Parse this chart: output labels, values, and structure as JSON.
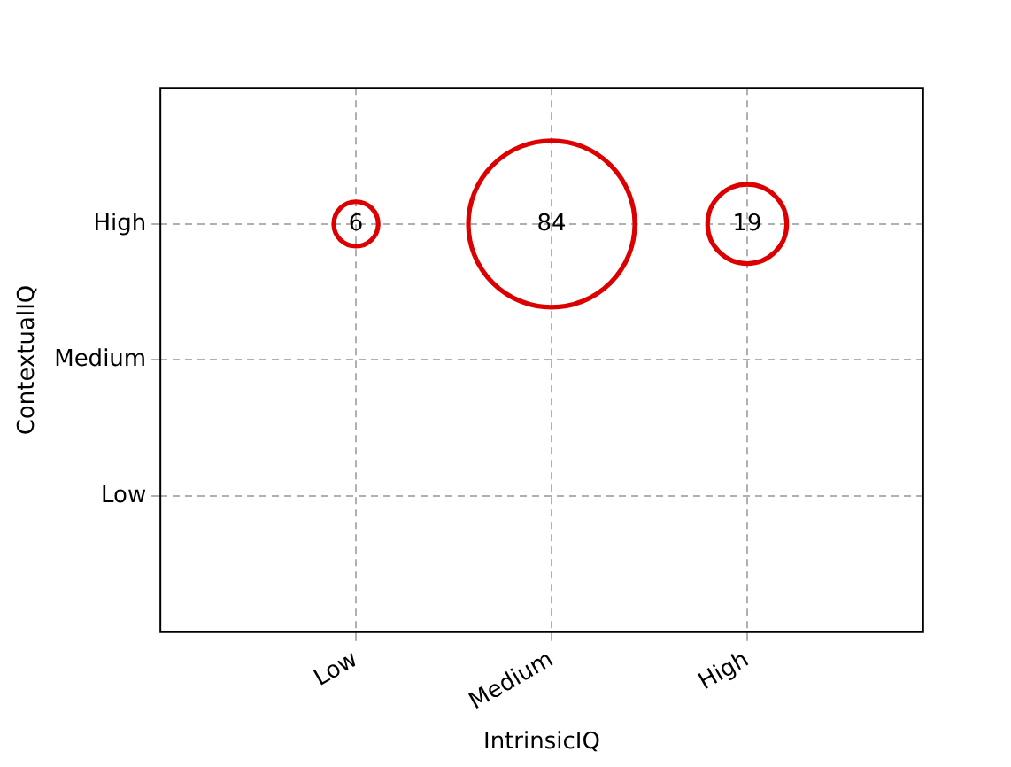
{
  "chart_data": {
    "type": "heatmap",
    "xlabel": "IntrinsicIQ",
    "ylabel": "ContextualIQ",
    "categories": [
      "Low",
      "Medium",
      "High"
    ],
    "y_categories": [
      "High",
      "Medium",
      "Low"
    ],
    "cells": [
      [
        6,
        84,
        19
      ],
      [
        null,
        null,
        null
      ],
      [
        null,
        null,
        null
      ]
    ],
    "color": "#dd0000",
    "data_labels": true,
    "grid": true,
    "legend": false
  }
}
